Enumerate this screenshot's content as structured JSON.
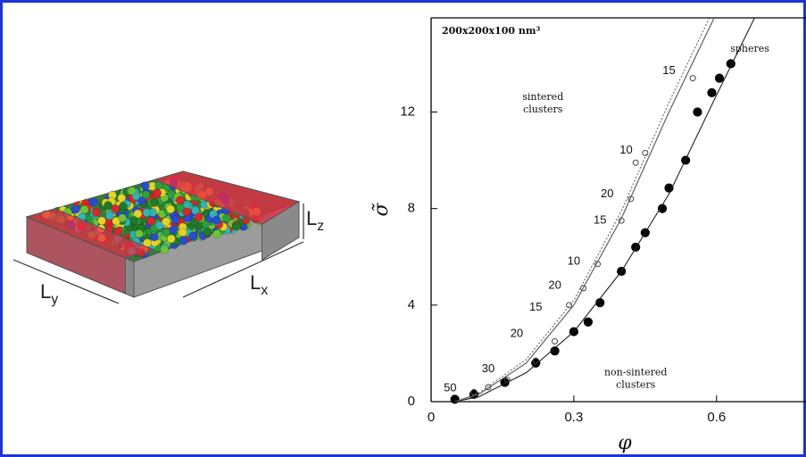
{
  "illustration": {
    "labels": [
      {
        "base": "L",
        "sub": "y"
      },
      {
        "base": "L",
        "sub": "x"
      },
      {
        "base": "L",
        "sub": "z"
      }
    ]
  },
  "chart_data": {
    "type": "scatter",
    "title": "200x200x100 nm³",
    "x_label": "φ",
    "y_label": "σ̃",
    "xlim": [
      0,
      0.788
    ],
    "ylim": [
      0,
      15.9
    ],
    "xticks": [
      0,
      0.3,
      0.6
    ],
    "yticks": [
      0,
      4,
      8,
      12
    ],
    "series": [
      {
        "style": "filled",
        "color": "#000000",
        "x": [
          0.05,
          0.09,
          0.155,
          0.22,
          0.26,
          0.3,
          0.33,
          0.355,
          0.4,
          0.43,
          0.45,
          0.486,
          0.5,
          0.535,
          0.56,
          0.59,
          0.606,
          0.63
        ],
        "y": [
          0.1,
          0.3,
          0.8,
          1.6,
          2.1,
          2.9,
          3.3,
          4.1,
          5.4,
          6.4,
          7.0,
          8.0,
          8.85,
          10.0,
          12.0,
          12.8,
          13.4,
          14.0
        ]
      },
      {
        "style": "open",
        "color": "#444444",
        "x": [
          0.09,
          0.12,
          0.16,
          0.22,
          0.26,
          0.29,
          0.32,
          0.35,
          0.4,
          0.42,
          0.43,
          0.45,
          0.55
        ],
        "y": [
          0.4,
          0.6,
          0.9,
          1.7,
          2.5,
          4.0,
          4.7,
          5.7,
          7.5,
          8.4,
          9.9,
          10.3,
          13.4
        ]
      },
      {
        "style": "solid",
        "color": "#222222",
        "x": [
          0.05,
          0.1,
          0.2,
          0.3,
          0.4,
          0.5,
          0.6,
          0.68
        ],
        "y": [
          0,
          0.2,
          1.2,
          2.9,
          5.4,
          8.6,
          12.7,
          15.9
        ]
      },
      {
        "style": "solid",
        "color": "#555555",
        "x": [
          0.05,
          0.1,
          0.2,
          0.3,
          0.4,
          0.5,
          0.595
        ],
        "y": [
          0,
          0.3,
          1.6,
          4.0,
          7.6,
          12.0,
          15.9
        ]
      },
      {
        "style": "dotted",
        "color": "#666666",
        "x": [
          0.05,
          0.1,
          0.2,
          0.3,
          0.4,
          0.5,
          0.585
        ],
        "y": [
          0,
          0.35,
          1.75,
          4.2,
          7.9,
          12.4,
          15.9
        ]
      }
    ],
    "annotations": [
      {
        "text": "spheres",
        "x": 0.67,
        "y": 14.6
      },
      {
        "text": "sintered clusters",
        "x": 0.235,
        "y": 12.6
      },
      {
        "text": "non-sintered clusters",
        "x": 0.43,
        "y": 1.2
      },
      {
        "text": "15",
        "x": 0.5,
        "y": 13.7
      },
      {
        "text": "10",
        "x": 0.41,
        "y": 10.4
      },
      {
        "text": "20",
        "x": 0.37,
        "y": 8.6
      },
      {
        "text": "15",
        "x": 0.355,
        "y": 7.5
      },
      {
        "text": "10",
        "x": 0.3,
        "y": 5.8
      },
      {
        "text": "20",
        "x": 0.26,
        "y": 4.8
      },
      {
        "text": "15",
        "x": 0.22,
        "y": 3.9
      },
      {
        "text": "20",
        "x": 0.18,
        "y": 2.8
      },
      {
        "text": "30",
        "x": 0.12,
        "y": 1.35
      },
      {
        "text": "50",
        "x": 0.04,
        "y": 0.55
      }
    ]
  }
}
